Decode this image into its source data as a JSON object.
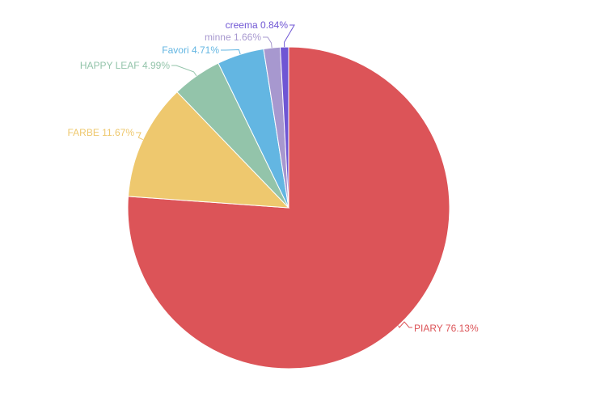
{
  "chart_data": {
    "type": "pie",
    "start_angle_deg": 0,
    "direction": "clockwise",
    "slices": [
      {
        "name": "PIARY",
        "value": 76.13,
        "label": "PIARY 76.13%",
        "color": "#dc5458",
        "label_side": "right"
      },
      {
        "name": "FARBE",
        "value": 11.67,
        "label": "FARBE 11.67%",
        "color": "#eec86e",
        "label_side": "left"
      },
      {
        "name": "HAPPY LEAF",
        "value": 4.99,
        "label": "HAPPY LEAF 4.99%",
        "color": "#93c4aa",
        "label_side": "left"
      },
      {
        "name": "Favori",
        "value": 4.71,
        "label": "Favori 4.71%",
        "color": "#63b6e2",
        "label_side": "left"
      },
      {
        "name": "minne",
        "value": 1.66,
        "label": "minne 1.66%",
        "color": "#a798cf",
        "label_side": "left"
      },
      {
        "name": "creema",
        "value": 0.84,
        "label": "creema 0.84%",
        "color": "#6f56d4",
        "label_side": "left"
      }
    ]
  }
}
